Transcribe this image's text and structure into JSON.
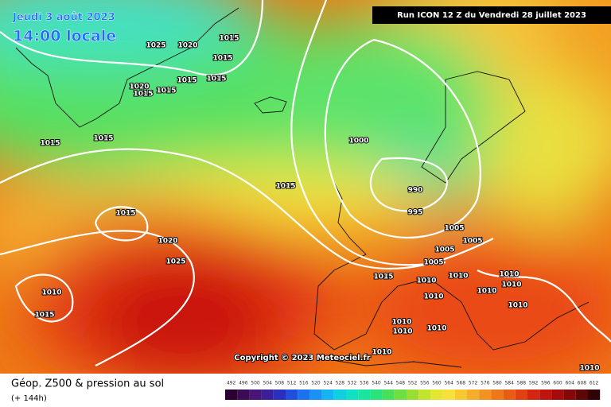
{
  "header": {
    "date": "Jeudi 3 août 2023",
    "time": "14:00 locale",
    "run": "Run ICON 12 Z du Vendredi 28 juillet 2023"
  },
  "copyright": "Copyright © 2023 Meteociel.fr",
  "footer": {
    "title": "Géop. Z500 & pression au sol",
    "lead": "(+ 144h)"
  },
  "colorbar": {
    "labels": [
      492,
      496,
      500,
      504,
      508,
      512,
      516,
      520,
      524,
      528,
      532,
      536,
      540,
      544,
      548,
      552,
      556,
      560,
      564,
      568,
      572,
      576,
      580,
      584,
      588,
      592,
      596,
      600,
      604,
      608,
      612
    ]
  },
  "isobars": {
    "labels": [
      1015,
      1025,
      1020,
      1015,
      1015,
      1015,
      1020,
      1015,
      1015,
      1015,
      1015,
      1000,
      1015,
      990,
      995,
      1015,
      1005,
      1005,
      1020,
      1005,
      1025,
      1005,
      1015,
      1010,
      1010,
      1010,
      1010,
      1010,
      1010,
      1010,
      1010,
      1015,
      1010,
      1010,
      1010,
      1010,
      1010
    ]
  }
}
